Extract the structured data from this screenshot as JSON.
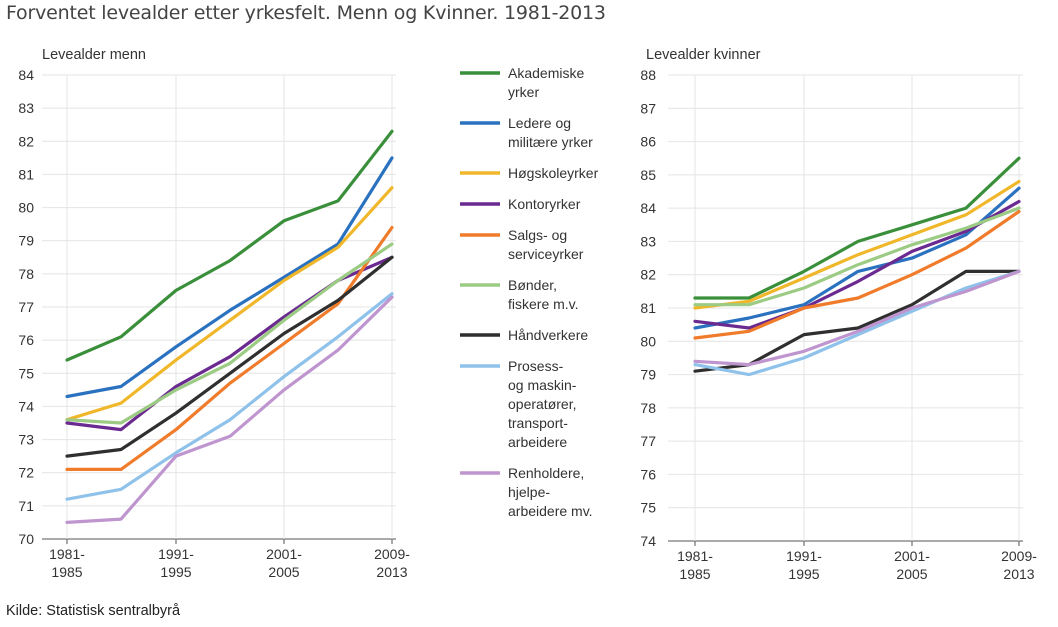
{
  "title": "Forventet levealder etter yrkesfelt. Menn og Kvinner. 1981-2013",
  "source": "Kilde: Statistisk sentralbyrå",
  "chart_data": [
    {
      "type": "line",
      "ylabel": "Levealder menn",
      "ylim": [
        70,
        84
      ],
      "yticks": [
        70,
        71,
        72,
        73,
        74,
        75,
        76,
        77,
        78,
        79,
        80,
        81,
        82,
        83,
        84
      ],
      "x_tick_labels": [
        [
          "1981-",
          "1985"
        ],
        [
          "1991-",
          "1995"
        ],
        [
          "2001-",
          "2005"
        ],
        [
          "2009-",
          "2013"
        ]
      ],
      "series": [
        {
          "name": "Akademiske yrker",
          "color": "#3a8f3a",
          "values": [
            75.4,
            76.1,
            77.5,
            78.4,
            79.6,
            80.2,
            82.3
          ]
        },
        {
          "name": "Ledere og militære yrker",
          "color": "#2a72c0",
          "values": [
            74.3,
            74.6,
            75.8,
            76.9,
            77.9,
            78.9,
            81.5
          ]
        },
        {
          "name": "Høgskoleyrker",
          "color": "#f1b72a",
          "values": [
            73.6,
            74.1,
            75.4,
            76.6,
            77.8,
            78.8,
            80.6
          ]
        },
        {
          "name": "Kontoryrker",
          "color": "#6b2a8f",
          "values": [
            73.5,
            73.3,
            74.6,
            75.5,
            76.7,
            77.8,
            78.5
          ]
        },
        {
          "name": "Salgs- og serviceyrker",
          "color": "#f07b2a",
          "values": [
            72.1,
            72.1,
            73.3,
            74.7,
            75.9,
            77.1,
            79.4
          ]
        },
        {
          "name": "Bønder, fiskere m.v.",
          "color": "#9ccb84",
          "values": [
            73.6,
            73.5,
            74.5,
            75.3,
            76.6,
            77.8,
            78.9
          ]
        },
        {
          "name": "Håndverkere",
          "color": "#2f2f2f",
          "values": [
            72.5,
            72.7,
            73.8,
            75.0,
            76.2,
            77.2,
            78.5
          ]
        },
        {
          "name": "Prosess- og maskin- operatører, transport- arbeidere",
          "color": "#8fc2ea",
          "values": [
            71.2,
            71.5,
            72.6,
            73.6,
            74.9,
            76.1,
            77.4
          ]
        },
        {
          "name": "Renholdere, hjelpe- arbeidere mv.",
          "color": "#bf95cf",
          "values": [
            70.5,
            70.6,
            72.5,
            73.1,
            74.5,
            75.7,
            77.3
          ]
        }
      ]
    },
    {
      "type": "line",
      "ylabel": "Levealder kvinner",
      "ylim": [
        74,
        88
      ],
      "yticks": [
        74,
        75,
        76,
        77,
        78,
        79,
        80,
        81,
        82,
        83,
        84,
        85,
        86,
        87,
        88
      ],
      "x_tick_labels": [
        [
          "1981-",
          "1985"
        ],
        [
          "1991-",
          "1995"
        ],
        [
          "2001-",
          "2005"
        ],
        [
          "2009-",
          "2013"
        ]
      ],
      "series": [
        {
          "name": "Akademiske yrker",
          "color": "#3a8f3a",
          "values": [
            81.3,
            81.3,
            82.1,
            83.0,
            83.5,
            84.0,
            85.5
          ]
        },
        {
          "name": "Ledere og militære yrker",
          "color": "#2a72c0",
          "values": [
            80.4,
            80.7,
            81.1,
            82.1,
            82.5,
            83.2,
            84.6
          ]
        },
        {
          "name": "Høgskoleyrker",
          "color": "#f1b72a",
          "values": [
            81.0,
            81.2,
            81.9,
            82.6,
            83.2,
            83.8,
            84.8
          ]
        },
        {
          "name": "Kontoryrker",
          "color": "#6b2a8f",
          "values": [
            80.6,
            80.4,
            81.0,
            81.8,
            82.7,
            83.3,
            84.2
          ]
        },
        {
          "name": "Salgs- og serviceyrker",
          "color": "#f07b2a",
          "values": [
            80.1,
            80.3,
            81.0,
            81.3,
            82.0,
            82.8,
            83.9
          ]
        },
        {
          "name": "Bønder, fiskere m.v.",
          "color": "#9ccb84",
          "values": [
            81.1,
            81.1,
            81.6,
            82.3,
            82.9,
            83.4,
            84.0
          ]
        },
        {
          "name": "Håndverkere",
          "color": "#2f2f2f",
          "values": [
            79.1,
            79.3,
            80.2,
            80.4,
            81.1,
            82.1,
            82.1
          ]
        },
        {
          "name": "Prosess- og maskin- operatører, transport- arbeidere",
          "color": "#8fc2ea",
          "values": [
            79.3,
            79.0,
            79.5,
            80.2,
            80.9,
            81.6,
            82.1
          ]
        },
        {
          "name": "Renholdere, hjelpe- arbeidere mv.",
          "color": "#bf95cf",
          "values": [
            79.4,
            79.3,
            79.7,
            80.3,
            81.0,
            81.5,
            82.1
          ]
        }
      ]
    }
  ],
  "legend": [
    {
      "lines": [
        "Akademiske",
        "yrker"
      ],
      "color": "#3a8f3a"
    },
    {
      "lines": [
        "Ledere og",
        "militære yrker"
      ],
      "color": "#2a72c0"
    },
    {
      "lines": [
        "Høgskoleyrker"
      ],
      "color": "#f1b72a"
    },
    {
      "lines": [
        "Kontoryrker"
      ],
      "color": "#6b2a8f"
    },
    {
      "lines": [
        "Salgs- og",
        "serviceyrker"
      ],
      "color": "#f07b2a"
    },
    {
      "lines": [
        "Bønder,",
        "fiskere m.v."
      ],
      "color": "#9ccb84"
    },
    {
      "lines": [
        "Håndverkere"
      ],
      "color": "#2f2f2f"
    },
    {
      "lines": [
        "Prosess-",
        "og maskin-",
        "operatører,",
        "transport-",
        "arbeidere"
      ],
      "color": "#8fc2ea"
    },
    {
      "lines": [
        "Renholdere,",
        "hjelpe-",
        "arbeidere mv."
      ],
      "color": "#bf95cf"
    }
  ]
}
